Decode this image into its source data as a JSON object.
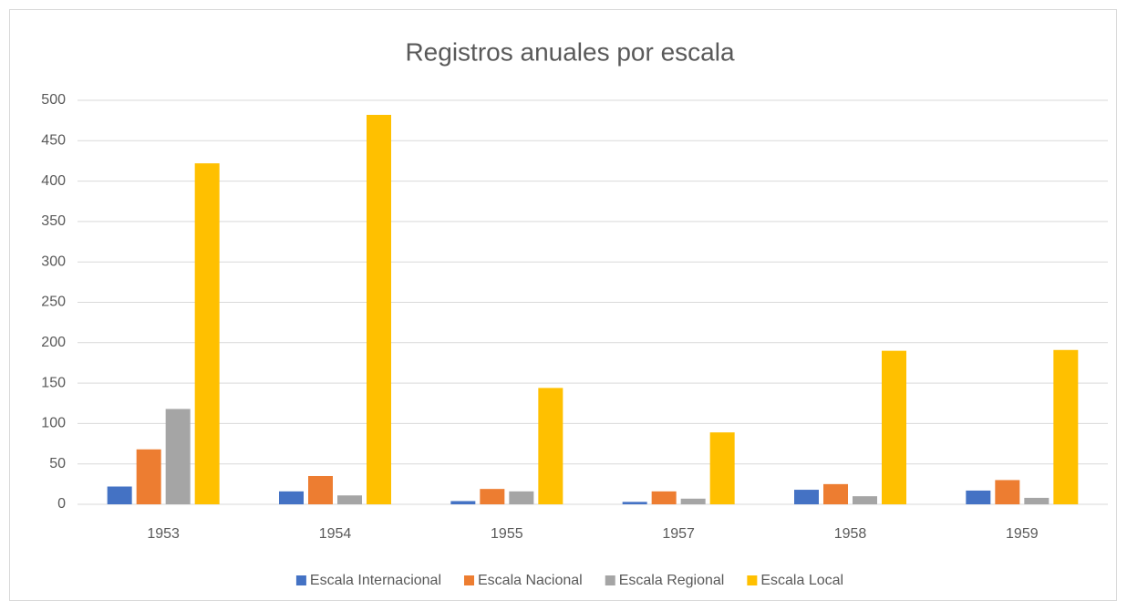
{
  "chart_data": {
    "type": "bar",
    "title": "Registros anuales por escala",
    "categories": [
      "1953",
      "1954",
      "1955",
      "1957",
      "1958",
      "1959"
    ],
    "series": [
      {
        "name": "Escala Internacional",
        "color": "#4472c4",
        "values": [
          22,
          16,
          4,
          3,
          18,
          17
        ]
      },
      {
        "name": "Escala Nacional",
        "color": "#ed7d31",
        "values": [
          68,
          35,
          19,
          16,
          25,
          30
        ]
      },
      {
        "name": "Escala Regional",
        "color": "#a5a5a5",
        "values": [
          118,
          11,
          16,
          7,
          10,
          8
        ]
      },
      {
        "name": "Escala Local",
        "color": "#ffc000",
        "values": [
          422,
          482,
          144,
          89,
          190,
          191
        ]
      }
    ],
    "ylim": [
      0,
      500
    ],
    "yticks": [
      0,
      50,
      100,
      150,
      200,
      250,
      300,
      350,
      400,
      450,
      500
    ],
    "grid": true,
    "legend": "bottom"
  }
}
